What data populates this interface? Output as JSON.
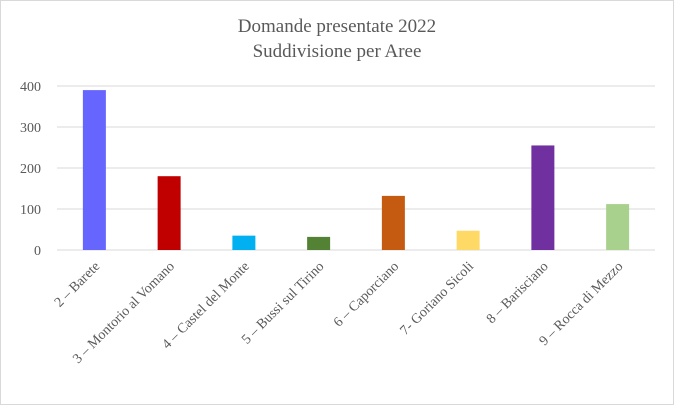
{
  "chart_data": {
    "type": "bar",
    "title": "Domande presentate 2022",
    "subtitle": "Suddivisione per Aree",
    "xlabel": "",
    "ylabel": "",
    "ylim": [
      0,
      400
    ],
    "yticks": [
      0,
      100,
      200,
      300,
      400
    ],
    "grid": true,
    "legend": "none",
    "categories": [
      "2 – Barete",
      "3 – Montorio al Vomano",
      "4 – Castel del Monte",
      "5 – Bussi sul Tirino",
      "6 – Caporciano",
      "7- Goriano Sicoli",
      "8 – Barisciano",
      "9 – Rocca di Mezzo"
    ],
    "values": [
      390,
      180,
      35,
      32,
      132,
      47,
      255,
      112
    ],
    "colors": [
      "#6666ff",
      "#c00000",
      "#00b0f0",
      "#548235",
      "#c55a11",
      "#ffd966",
      "#7030a0",
      "#a9d18e"
    ]
  }
}
